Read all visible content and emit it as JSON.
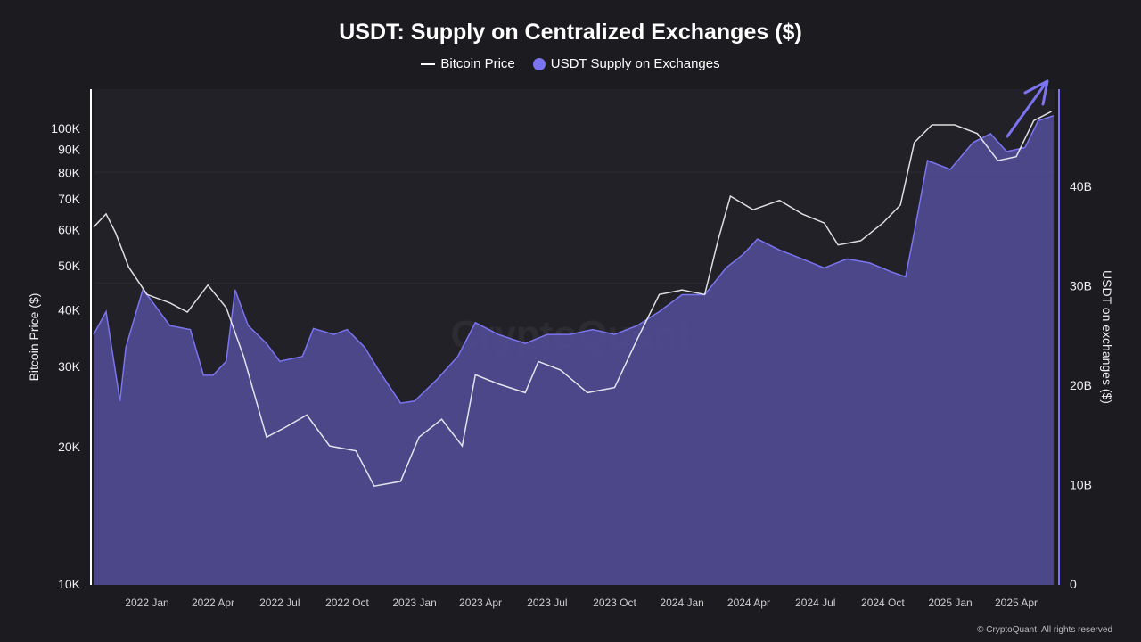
{
  "chart_data": {
    "type": "area",
    "title": "USDT: Supply on Centralized Exchanges ($)",
    "legend": [
      {
        "name": "Bitcoin Price",
        "type": "line"
      },
      {
        "name": "USDT Supply on Exchanges",
        "type": "area"
      }
    ],
    "legend_position": "top-center",
    "ylabel_left": "Bitcoin Price ($)",
    "ylabel_right": "USDT on exchanges ($)",
    "y_left_scale": "log",
    "y_left_range": [
      10000,
      120000
    ],
    "y_left_ticks": [
      {
        "value": 10000,
        "label": "10K"
      },
      {
        "value": 20000,
        "label": "20K"
      },
      {
        "value": 30000,
        "label": "30K"
      },
      {
        "value": 40000,
        "label": "40K"
      },
      {
        "value": 50000,
        "label": "50K"
      },
      {
        "value": 60000,
        "label": "60K"
      },
      {
        "value": 70000,
        "label": "70K"
      },
      {
        "value": 80000,
        "label": "80K"
      },
      {
        "value": 90000,
        "label": "90K"
      },
      {
        "value": 100000,
        "label": "100K"
      }
    ],
    "y_right_range": [
      0,
      50
    ],
    "y_right_units": "billion USD",
    "y_right_ticks": [
      {
        "value": 0,
        "label": "0"
      },
      {
        "value": 10,
        "label": "10B"
      },
      {
        "value": 20,
        "label": "20B"
      },
      {
        "value": 30,
        "label": "30B"
      },
      {
        "value": 40,
        "label": "40B"
      }
    ],
    "x_ticks": [
      {
        "date": "2022-01-01",
        "label": "2022 Jan"
      },
      {
        "date": "2022-04-01",
        "label": "2022 Apr"
      },
      {
        "date": "2022-07-01",
        "label": "2022 Jul"
      },
      {
        "date": "2022-10-01",
        "label": "2022 Oct"
      },
      {
        "date": "2023-01-01",
        "label": "2023 Jan"
      },
      {
        "date": "2023-04-01",
        "label": "2023 Apr"
      },
      {
        "date": "2023-07-01",
        "label": "2023 Jul"
      },
      {
        "date": "2023-10-01",
        "label": "2023 Oct"
      },
      {
        "date": "2024-01-01",
        "label": "2024 Jan"
      },
      {
        "date": "2024-04-01",
        "label": "2024 Apr"
      },
      {
        "date": "2024-07-01",
        "label": "2024 Jul"
      },
      {
        "date": "2024-10-01",
        "label": "2024 Oct"
      },
      {
        "date": "2025-01-01",
        "label": "2025 Jan"
      },
      {
        "date": "2025-04-01",
        "label": "2025 Apr"
      }
    ],
    "x_range": [
      "2021-10-20",
      "2025-05-22"
    ],
    "grid": true,
    "series": [
      {
        "name": "USDT Supply on Exchanges",
        "axis": "right",
        "color": "#7b74f0",
        "fill": "#4e4a8e",
        "points": [
          [
            "2021-10-20",
            25.1
          ],
          [
            "2021-11-06",
            27.4
          ],
          [
            "2021-11-25",
            18.4
          ],
          [
            "2021-12-03",
            23.8
          ],
          [
            "2021-12-26",
            29.6
          ],
          [
            "2022-01-01",
            29.1
          ],
          [
            "2022-02-01",
            26.0
          ],
          [
            "2022-03-01",
            25.6
          ],
          [
            "2022-03-19",
            21.0
          ],
          [
            "2022-04-01",
            21.0
          ],
          [
            "2022-04-19",
            22.4
          ],
          [
            "2022-05-01",
            29.6
          ],
          [
            "2022-05-19",
            26.0
          ],
          [
            "2022-06-13",
            24.2
          ],
          [
            "2022-07-01",
            22.4
          ],
          [
            "2022-08-01",
            22.9
          ],
          [
            "2022-08-16",
            25.7
          ],
          [
            "2022-09-13",
            25.1
          ],
          [
            "2022-10-01",
            25.6
          ],
          [
            "2022-10-25",
            23.8
          ],
          [
            "2022-11-13",
            21.5
          ],
          [
            "2022-12-13",
            18.2
          ],
          [
            "2023-01-01",
            18.4
          ],
          [
            "2023-02-01",
            20.6
          ],
          [
            "2023-03-01",
            22.9
          ],
          [
            "2023-03-25",
            26.3
          ],
          [
            "2023-04-25",
            25.1
          ],
          [
            "2023-06-01",
            24.2
          ],
          [
            "2023-07-01",
            25.1
          ],
          [
            "2023-08-01",
            25.1
          ],
          [
            "2023-09-01",
            25.6
          ],
          [
            "2023-10-01",
            25.1
          ],
          [
            "2023-11-01",
            26.0
          ],
          [
            "2023-12-01",
            27.4
          ],
          [
            "2024-01-01",
            29.1
          ],
          [
            "2024-02-01",
            29.1
          ],
          [
            "2024-03-01",
            31.8
          ],
          [
            "2024-03-25",
            33.2
          ],
          [
            "2024-04-13",
            34.7
          ],
          [
            "2024-05-13",
            33.6
          ],
          [
            "2024-06-13",
            32.7
          ],
          [
            "2024-07-13",
            31.8
          ],
          [
            "2024-08-13",
            32.7
          ],
          [
            "2024-09-13",
            32.3
          ],
          [
            "2024-10-13",
            31.4
          ],
          [
            "2024-11-01",
            30.9
          ],
          [
            "2024-11-13",
            35.4
          ],
          [
            "2024-12-01",
            42.6
          ],
          [
            "2025-01-01",
            41.7
          ],
          [
            "2025-02-01",
            44.4
          ],
          [
            "2025-02-25",
            45.3
          ],
          [
            "2025-03-19",
            43.5
          ],
          [
            "2025-04-13",
            43.9
          ],
          [
            "2025-05-01",
            46.6
          ],
          [
            "2025-05-22",
            47.1
          ]
        ]
      },
      {
        "name": "Bitcoin Price",
        "axis": "left",
        "color": "#ffffff",
        "points": [
          [
            "2021-10-20",
            60700
          ],
          [
            "2021-11-06",
            64900
          ],
          [
            "2021-11-19",
            59000
          ],
          [
            "2021-12-07",
            49600
          ],
          [
            "2022-01-01",
            43200
          ],
          [
            "2022-02-01",
            41400
          ],
          [
            "2022-02-25",
            39500
          ],
          [
            "2022-03-25",
            45300
          ],
          [
            "2022-04-19",
            40400
          ],
          [
            "2022-05-13",
            31500
          ],
          [
            "2022-06-13",
            21000
          ],
          [
            "2022-07-07",
            22000
          ],
          [
            "2022-08-07",
            23500
          ],
          [
            "2022-09-07",
            20100
          ],
          [
            "2022-10-13",
            19600
          ],
          [
            "2022-11-07",
            16400
          ],
          [
            "2022-12-13",
            16800
          ],
          [
            "2023-01-07",
            21000
          ],
          [
            "2023-02-07",
            23000
          ],
          [
            "2023-03-07",
            20100
          ],
          [
            "2023-03-25",
            28800
          ],
          [
            "2023-04-25",
            27500
          ],
          [
            "2023-06-01",
            26300
          ],
          [
            "2023-06-19",
            30800
          ],
          [
            "2023-07-19",
            29500
          ],
          [
            "2023-08-25",
            26300
          ],
          [
            "2023-10-01",
            27000
          ],
          [
            "2023-11-01",
            34500
          ],
          [
            "2023-12-01",
            43200
          ],
          [
            "2024-01-01",
            44200
          ],
          [
            "2024-02-01",
            43200
          ],
          [
            "2024-02-19",
            56700
          ],
          [
            "2024-03-07",
            71000
          ],
          [
            "2024-04-07",
            66300
          ],
          [
            "2024-05-13",
            69500
          ],
          [
            "2024-06-13",
            64900
          ],
          [
            "2024-07-13",
            62000
          ],
          [
            "2024-08-01",
            55500
          ],
          [
            "2024-09-01",
            56700
          ],
          [
            "2024-10-01",
            62000
          ],
          [
            "2024-10-25",
            67900
          ],
          [
            "2024-11-13",
            93100
          ],
          [
            "2024-12-07",
            101800
          ],
          [
            "2025-01-07",
            101800
          ],
          [
            "2025-02-07",
            97400
          ],
          [
            "2025-03-07",
            85000
          ],
          [
            "2025-04-01",
            86700
          ],
          [
            "2025-04-25",
            104000
          ],
          [
            "2025-05-19",
            108900
          ]
        ]
      }
    ],
    "annotations": [
      {
        "type": "arrow",
        "direction": "up-right",
        "color": "#7b74f0"
      }
    ],
    "watermark": "CryptoQuant"
  },
  "footer": "© CryptoQuant. All rights reserved"
}
